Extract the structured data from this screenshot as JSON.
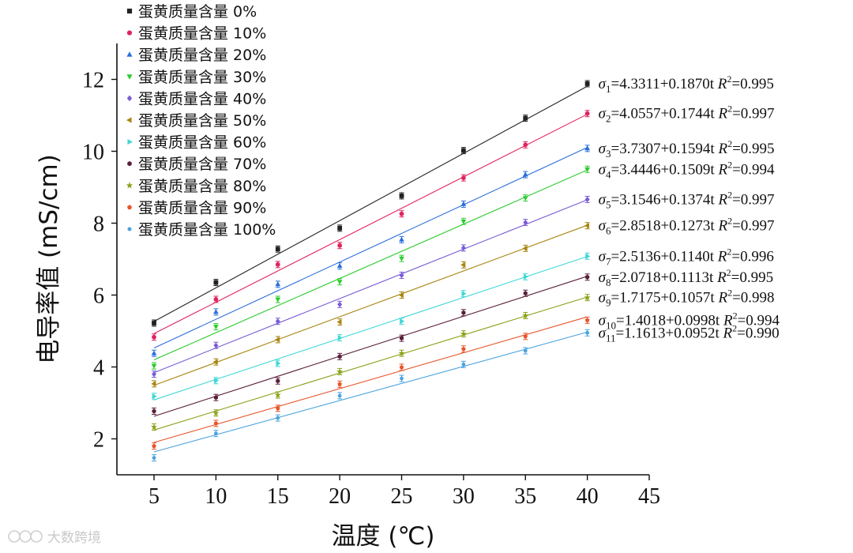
{
  "chart_data": {
    "type": "scatter",
    "xlabel": "温度 (℃)",
    "ylabel": "电导率值 (mS/cm)",
    "xlim": [
      2,
      45
    ],
    "ylim": [
      1,
      13
    ],
    "xticks": [
      5,
      10,
      15,
      20,
      25,
      30,
      35,
      40,
      45
    ],
    "yticks": [
      2,
      4,
      6,
      8,
      10,
      12
    ],
    "legend_position": "top-left",
    "x": [
      5,
      10,
      15,
      20,
      25,
      30,
      35,
      40
    ],
    "series": [
      {
        "name": "蛋黄质量含量 0%",
        "marker": "square",
        "color": "#222222",
        "values": [
          5.22,
          6.35,
          7.28,
          7.86,
          8.76,
          10.02,
          10.92,
          11.88
        ],
        "fit": {
          "sigma": "σ1",
          "intercept": 4.3311,
          "slope": 0.187,
          "r2": "0.995"
        }
      },
      {
        "name": "蛋黄质量含量 10%",
        "marker": "circle",
        "color": "#e0245e",
        "values": [
          4.83,
          5.88,
          6.85,
          7.38,
          8.26,
          9.26,
          10.18,
          11.05
        ],
        "fit": {
          "sigma": "σ2",
          "intercept": 4.0557,
          "slope": 0.1744,
          "r2": "0.997"
        }
      },
      {
        "name": "蛋黄质量含量 20%",
        "marker": "triangle-up",
        "color": "#2a6fdb",
        "values": [
          4.38,
          5.53,
          6.3,
          6.81,
          7.54,
          8.53,
          9.35,
          10.08
        ],
        "fit": {
          "sigma": "σ3",
          "intercept": 3.7307,
          "slope": 0.1594,
          "r2": "0.995"
        }
      },
      {
        "name": "蛋黄质量含量 30%",
        "marker": "triangle-down",
        "color": "#2ecc2e",
        "values": [
          4.03,
          5.12,
          5.88,
          6.37,
          7.02,
          8.05,
          8.7,
          9.5
        ],
        "fit": {
          "sigma": "σ4",
          "intercept": 3.4446,
          "slope": 0.1509,
          "r2": "0.994"
        }
      },
      {
        "name": "蛋黄质量含量 40%",
        "marker": "diamond",
        "color": "#7b5cd6",
        "values": [
          3.8,
          4.6,
          5.27,
          5.74,
          6.55,
          7.31,
          8.02,
          8.66
        ],
        "fit": {
          "sigma": "σ5",
          "intercept": 3.1546,
          "slope": 0.1374,
          "r2": "0.997"
        }
      },
      {
        "name": "蛋黄质量含量 50%",
        "marker": "triangle-left",
        "color": "#a8850f",
        "values": [
          3.53,
          4.14,
          4.76,
          5.25,
          6.0,
          6.84,
          7.3,
          7.93
        ],
        "fit": {
          "sigma": "σ6",
          "intercept": 2.8518,
          "slope": 0.1273,
          "r2": "0.997"
        }
      },
      {
        "name": "蛋黄质量含量 60%",
        "marker": "triangle-right",
        "color": "#3fd6d6",
        "values": [
          3.18,
          3.62,
          4.1,
          4.81,
          5.27,
          6.04,
          6.51,
          7.08
        ],
        "fit": {
          "sigma": "σ7",
          "intercept": 2.5136,
          "slope": 0.114,
          "r2": "0.996"
        }
      },
      {
        "name": "蛋黄质量含量 70%",
        "marker": "hexagon",
        "color": "#5a1e3a",
        "values": [
          2.77,
          3.15,
          3.61,
          4.29,
          4.8,
          5.51,
          6.05,
          6.5
        ],
        "fit": {
          "sigma": "σ8",
          "intercept": 2.0718,
          "slope": 0.1113,
          "r2": "0.995"
        }
      },
      {
        "name": "蛋黄质量含量 80%",
        "marker": "star",
        "color": "#8aa31a",
        "values": [
          2.33,
          2.72,
          3.22,
          3.87,
          4.38,
          4.92,
          5.43,
          5.93
        ],
        "fit": {
          "sigma": "σ9",
          "intercept": 1.7175,
          "slope": 0.1057,
          "r2": "0.998"
        }
      },
      {
        "name": "蛋黄质量含量 90%",
        "marker": "pentagon",
        "color": "#e8552a",
        "values": [
          1.8,
          2.43,
          2.85,
          3.52,
          3.99,
          4.5,
          4.85,
          5.3
        ],
        "fit": {
          "sigma": "σ10",
          "intercept": 1.4018,
          "slope": 0.0998,
          "r2": "0.994"
        }
      },
      {
        "name": "蛋黄质量含量 100%",
        "marker": "small-circle",
        "color": "#4aa3df",
        "values": [
          1.47,
          2.15,
          2.58,
          3.2,
          3.68,
          4.07,
          4.45,
          4.95
        ],
        "fit": {
          "sigma": "σ11",
          "intercept": 1.1613,
          "slope": 0.0952,
          "r2": "0.990"
        }
      }
    ]
  },
  "watermark": {
    "text": "大数跨境",
    "icon": "logo-icon"
  }
}
